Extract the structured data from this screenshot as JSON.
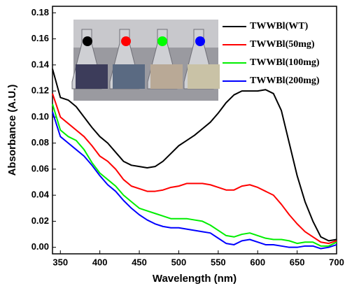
{
  "chart_data": {
    "type": "line",
    "x_label": "Wavelength (nm)",
    "y_label": "Absorbance (A.U.)",
    "x": [
      340,
      350,
      360,
      370,
      380,
      390,
      400,
      410,
      420,
      430,
      440,
      450,
      460,
      470,
      480,
      490,
      500,
      510,
      520,
      530,
      540,
      550,
      560,
      570,
      580,
      590,
      600,
      610,
      620,
      630,
      640,
      650,
      660,
      670,
      680,
      690,
      700
    ],
    "series": [
      {
        "name": "TWWBl(WT)",
        "color": "#000000",
        "values": [
          0.137,
          0.115,
          0.113,
          0.108,
          0.1,
          0.092,
          0.085,
          0.08,
          0.073,
          0.066,
          0.063,
          0.062,
          0.061,
          0.062,
          0.066,
          0.072,
          0.078,
          0.082,
          0.086,
          0.091,
          0.096,
          0.103,
          0.111,
          0.117,
          0.12,
          0.12,
          0.12,
          0.121,
          0.118,
          0.105,
          0.08,
          0.055,
          0.035,
          0.02,
          0.008,
          0.005,
          0.006
        ]
      },
      {
        "name": "TWWBl(50mg)",
        "color": "#ff0000",
        "values": [
          0.118,
          0.1,
          0.095,
          0.09,
          0.085,
          0.078,
          0.07,
          0.066,
          0.06,
          0.052,
          0.047,
          0.045,
          0.043,
          0.043,
          0.044,
          0.046,
          0.047,
          0.049,
          0.049,
          0.049,
          0.048,
          0.046,
          0.044,
          0.044,
          0.047,
          0.048,
          0.046,
          0.043,
          0.04,
          0.033,
          0.025,
          0.018,
          0.012,
          0.008,
          0.004,
          0.003,
          0.005
        ]
      },
      {
        "name": "TWWBl(100mg)",
        "color": "#00ee00",
        "values": [
          0.11,
          0.09,
          0.085,
          0.082,
          0.075,
          0.065,
          0.057,
          0.052,
          0.047,
          0.04,
          0.035,
          0.03,
          0.028,
          0.026,
          0.024,
          0.022,
          0.022,
          0.022,
          0.021,
          0.02,
          0.017,
          0.013,
          0.009,
          0.008,
          0.01,
          0.011,
          0.009,
          0.007,
          0.006,
          0.006,
          0.005,
          0.003,
          0.004,
          0.004,
          0.001,
          0.001,
          0.004
        ]
      },
      {
        "name": "TWWBl(200mg)",
        "color": "#0000ff",
        "values": [
          0.104,
          0.085,
          0.08,
          0.075,
          0.07,
          0.063,
          0.055,
          0.048,
          0.043,
          0.036,
          0.03,
          0.025,
          0.021,
          0.018,
          0.016,
          0.015,
          0.015,
          0.014,
          0.013,
          0.012,
          0.011,
          0.007,
          0.003,
          0.002,
          0.005,
          0.006,
          0.004,
          0.002,
          0.002,
          0.001,
          0,
          0,
          0.001,
          0.001,
          -0.001,
          0,
          0.002
        ]
      }
    ],
    "xlim": [
      340,
      700
    ],
    "xticks": [
      350,
      400,
      450,
      500,
      550,
      600,
      650,
      700
    ],
    "ylim": [
      -0.005,
      0.185
    ],
    "yticks": [
      {
        "value": 0,
        "label": "0.00"
      },
      {
        "value": 0.02,
        "label": "0.02"
      },
      {
        "value": 0.04,
        "label": "0.04"
      },
      {
        "value": 0.06,
        "label": "0.06"
      },
      {
        "value": 0.08,
        "label": "0.08"
      },
      {
        "value": 0.1,
        "label": "0.10"
      },
      {
        "value": 0.12,
        "label": "0.12"
      },
      {
        "value": 0.14,
        "label": "0.14"
      },
      {
        "value": 0.16,
        "label": "0.16"
      },
      {
        "value": 0.18,
        "label": "0.18"
      }
    ],
    "legend": "upper right"
  }
}
